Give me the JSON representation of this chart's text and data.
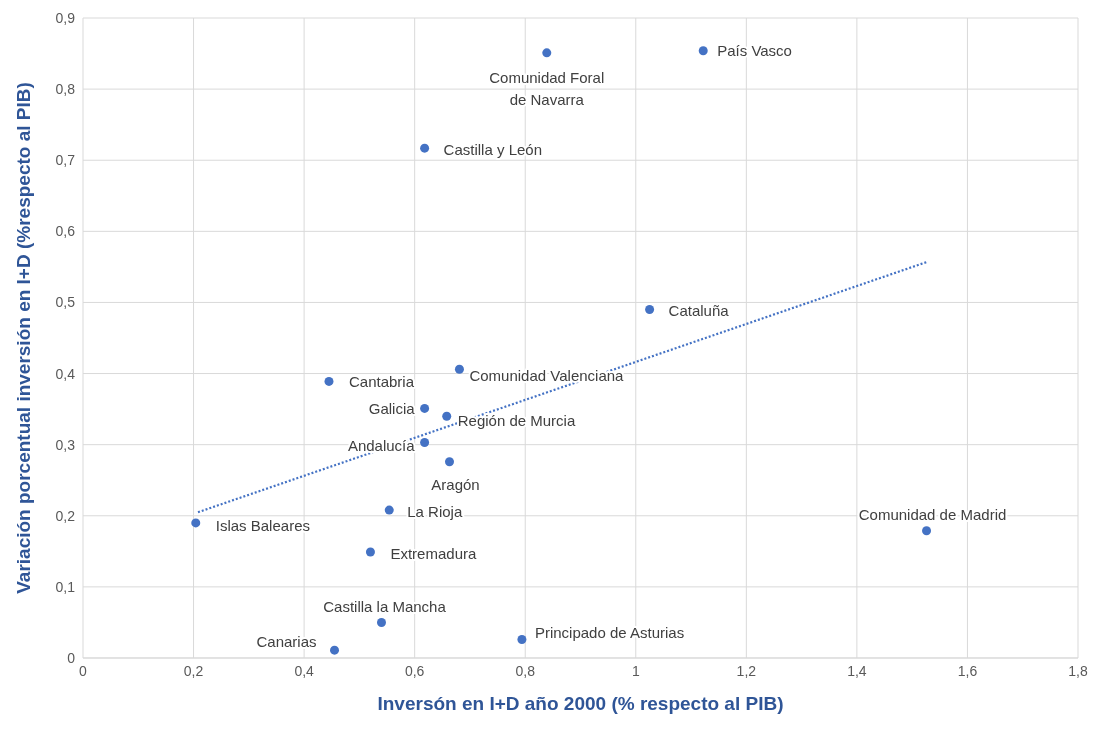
{
  "chart_data": {
    "type": "scatter",
    "xlabel": "Inversón en I+D año 2000 (% respecto al PIB)",
    "ylabel": "Variación porcentual inversión en I+D (%respecto al PIB)",
    "xlim": [
      0,
      1.8
    ],
    "ylim": [
      0,
      0.9
    ],
    "xticks": [
      0,
      {
        "value": 0.2,
        "label": "0,2"
      },
      {
        "value": 0.4,
        "label": "0,4"
      },
      {
        "value": 0.6,
        "label": "0,6"
      },
      {
        "value": 0.8,
        "label": "0,8"
      },
      1,
      {
        "value": 1.2,
        "label": "1,2"
      },
      {
        "value": 1.4,
        "label": "1,4"
      },
      {
        "value": 1.6,
        "label": "1,6"
      },
      {
        "value": 1.8,
        "label": "1,8"
      }
    ],
    "yticks": [
      0,
      {
        "value": 0.1,
        "label": "0,1"
      },
      {
        "value": 0.2,
        "label": "0,2"
      },
      {
        "value": 0.3,
        "label": "0,3"
      },
      {
        "value": 0.4,
        "label": "0,4"
      },
      {
        "value": 0.5,
        "label": "0,5"
      },
      {
        "value": 0.6,
        "label": "0,6"
      },
      {
        "value": 0.7,
        "label": "0,7"
      },
      {
        "value": 0.8,
        "label": "0,8"
      },
      {
        "value": 0.9,
        "label": "0,9"
      }
    ],
    "grid": true,
    "marker": "circle",
    "legend": false,
    "series": [
      {
        "color": "#4472c4",
        "x": [
          1.122,
          0.839,
          0.618,
          1.025,
          0.681,
          0.445,
          0.618,
          0.658,
          0.618,
          0.663,
          0.554,
          0.204,
          1.526,
          0.52,
          0.54,
          0.455,
          0.794
        ],
        "values": [
          0.854,
          0.851,
          0.717,
          0.49,
          0.406,
          0.389,
          0.351,
          0.34,
          0.303,
          0.276,
          0.208,
          0.19,
          0.179,
          0.149,
          0.05,
          0.011,
          0.026
        ]
      },
      {
        "type": "line",
        "color": "#4472c4",
        "line_style": "dotted",
        "marker": "none",
        "x": [
          0.208,
          1.527
        ],
        "values": [
          0.205,
          0.557
        ]
      }
    ],
    "annotations": [
      {
        "text": "País Vasco",
        "x": 1.122,
        "y": 0.854
      },
      {
        "text": "Comunidad Foral de Navarra",
        "x": 0.839,
        "y": 0.851
      },
      {
        "text": "Castilla y León",
        "x": 0.618,
        "y": 0.717
      },
      {
        "text": "Cataluña",
        "x": 1.025,
        "y": 0.49
      },
      {
        "text": "Comunidad Valenciana",
        "x": 0.681,
        "y": 0.406
      },
      {
        "text": "Cantabria",
        "x": 0.445,
        "y": 0.389
      },
      {
        "text": "Galicia",
        "x": 0.618,
        "y": 0.351
      },
      {
        "text": "Región de Murcia",
        "x": 0.658,
        "y": 0.34
      },
      {
        "text": "Andalucía",
        "x": 0.618,
        "y": 0.303
      },
      {
        "text": "Aragón",
        "x": 0.663,
        "y": 0.276
      },
      {
        "text": "La Rioja",
        "x": 0.554,
        "y": 0.208
      },
      {
        "text": "Islas Baleares",
        "x": 0.204,
        "y": 0.19
      },
      {
        "text": "Comunidad de Madrid",
        "x": 1.526,
        "y": 0.179
      },
      {
        "text": "Extremadura",
        "x": 0.52,
        "y": 0.149
      },
      {
        "text": "Castilla la Mancha",
        "x": 0.54,
        "y": 0.05
      },
      {
        "text": "Canarias",
        "x": 0.455,
        "y": 0.011
      },
      {
        "text": "Principado de Asturias",
        "x": 0.794,
        "y": 0.026
      }
    ]
  }
}
